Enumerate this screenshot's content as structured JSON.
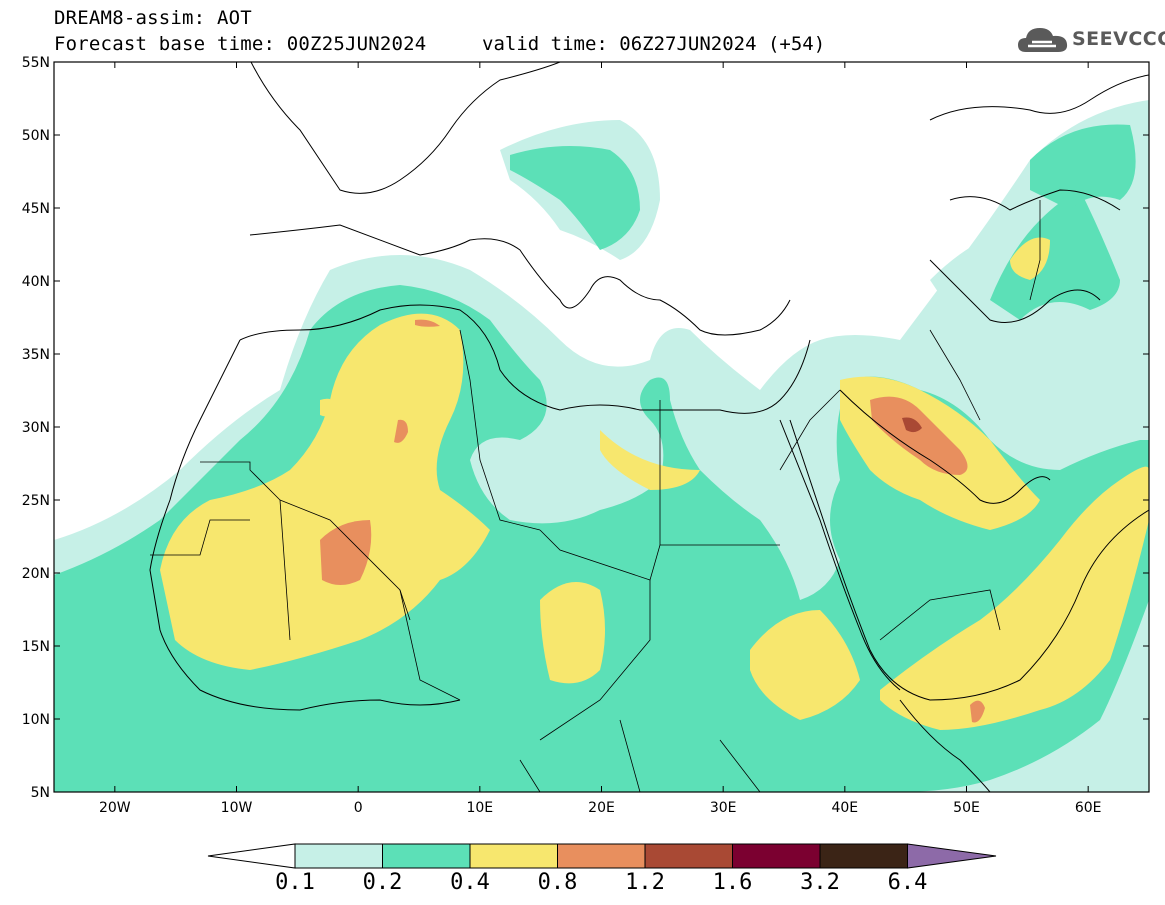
{
  "header": {
    "line1": "DREAM8-assim: AOT",
    "line2": "Forecast base time: 00Z25JUN2024",
    "valid": "valid time: 06Z27JUN2024 (+54)"
  },
  "logo": {
    "text": "SEEVCCC",
    "icon": "cloud-icon"
  },
  "axes": {
    "x_ticks": [
      "20W",
      "10W",
      "0",
      "10E",
      "20E",
      "30E",
      "40E",
      "50E",
      "60E"
    ],
    "y_ticks": [
      "55N",
      "50N",
      "45N",
      "40N",
      "35N",
      "30N",
      "25N",
      "20N",
      "15N",
      "10N",
      "5N"
    ]
  },
  "colorbar": {
    "labels": [
      "0.1",
      "0.2",
      "0.4",
      "0.8",
      "1.2",
      "1.6",
      "3.2",
      "6.4"
    ],
    "colors": [
      "#ffffff",
      "#c6f0e7",
      "#5ce0b7",
      "#f7e76e",
      "#e88f5e",
      "#a94934",
      "#7b0030",
      "#3b2416",
      "#8d6aa8"
    ]
  },
  "palette": {
    "c01": "#c6f0e7",
    "c02": "#5ce0b7",
    "c04": "#f7e76e",
    "c08": "#e88f5e",
    "c12": "#a94934"
  }
}
